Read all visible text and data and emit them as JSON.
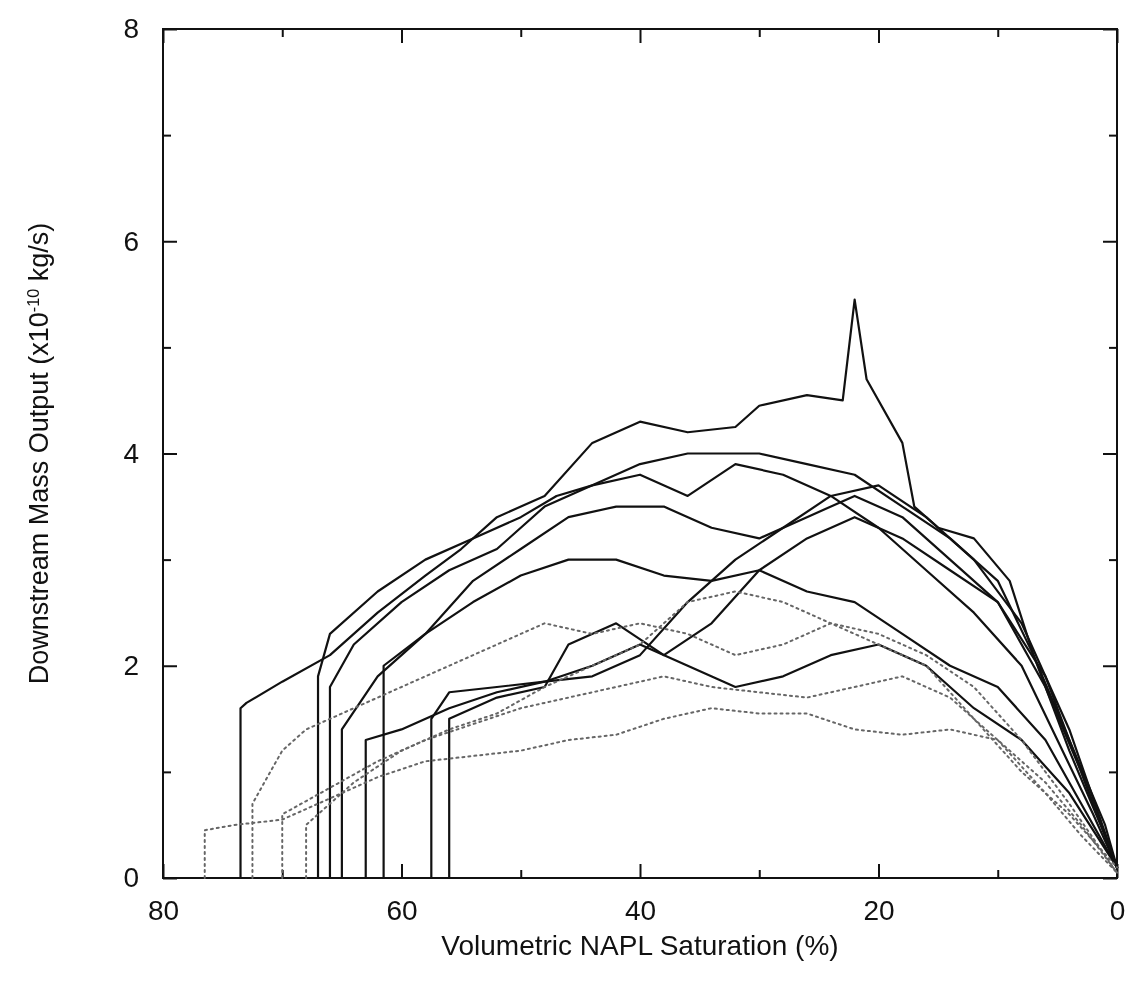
{
  "chart_data": {
    "type": "line",
    "xlabel": "Volumetric NAPL Saturation (%)",
    "ylabel": "Downstream Mass Output (x10$^{-10}$ kg/s)",
    "xlim": [
      80,
      0
    ],
    "ylim": [
      0,
      8
    ],
    "xticks": [
      80,
      {
        "value": 70,
        "label": null
      },
      60,
      {
        "value": 50,
        "label": null
      },
      40,
      {
        "value": 30,
        "label": null
      },
      20,
      {
        "value": 10,
        "label": null
      },
      0
    ],
    "yticks": [
      0,
      {
        "value": 1,
        "label": null
      },
      2,
      {
        "value": 3,
        "label": null
      },
      4,
      {
        "value": 5,
        "label": null
      },
      6,
      {
        "value": 7,
        "label": null
      },
      8
    ],
    "grid": false,
    "series": [
      {
        "color": "#111111",
        "line_style": "solid",
        "x": [
          73.5,
          73.5,
          73,
          70,
          66,
          62,
          58,
          55,
          52,
          48,
          44,
          40,
          36,
          32,
          30,
          26,
          23,
          22,
          21,
          18,
          17,
          15,
          12,
          9,
          7,
          4,
          1,
          0
        ],
        "values": [
          0,
          1.6,
          1.65,
          1.85,
          2.1,
          2.5,
          2.85,
          3.1,
          3.4,
          3.6,
          4.1,
          4.3,
          4.2,
          4.25,
          4.45,
          4.55,
          4.5,
          5.45,
          4.7,
          4.1,
          3.5,
          3.3,
          3.2,
          2.8,
          2.1,
          1.3,
          0.5,
          0.1
        ]
      },
      {
        "color": "#111111",
        "line_style": "solid",
        "x": [
          67,
          67,
          66,
          62,
          58,
          54,
          50,
          47,
          44,
          40,
          36,
          30,
          26,
          22,
          18,
          14,
          10,
          7,
          4,
          1,
          0
        ],
        "values": [
          0,
          1.9,
          2.3,
          2.7,
          3.0,
          3.2,
          3.4,
          3.6,
          3.7,
          3.9,
          4.0,
          4.0,
          3.9,
          3.8,
          3.5,
          3.2,
          2.8,
          2.1,
          1.2,
          0.4,
          0.1
        ]
      },
      {
        "color": "#111111",
        "line_style": "solid",
        "x": [
          66,
          66,
          64,
          60,
          56,
          52,
          48,
          44,
          40,
          36,
          32,
          28,
          24,
          20,
          16,
          12,
          8,
          5,
          2,
          0
        ],
        "values": [
          0,
          1.8,
          2.2,
          2.6,
          2.9,
          3.1,
          3.5,
          3.7,
          3.8,
          3.6,
          3.9,
          3.8,
          3.6,
          3.3,
          2.9,
          2.5,
          2.0,
          1.3,
          0.6,
          0.1
        ]
      },
      {
        "color": "#111111",
        "line_style": "solid",
        "x": [
          65,
          65,
          62,
          58,
          54,
          50,
          46,
          42,
          38,
          34,
          30,
          26,
          22,
          18,
          14,
          10,
          6,
          3,
          0
        ],
        "values": [
          0,
          1.4,
          1.9,
          2.3,
          2.8,
          3.1,
          3.4,
          3.5,
          3.5,
          3.3,
          3.2,
          3.4,
          3.6,
          3.4,
          3.0,
          2.6,
          1.8,
          1.0,
          0.1
        ]
      },
      {
        "color": "#111111",
        "line_style": "solid",
        "x": [
          61.5,
          61.5,
          58,
          54,
          50,
          46,
          42,
          38,
          34,
          30,
          26,
          22,
          18,
          14,
          10,
          6,
          3,
          0
        ],
        "values": [
          0,
          2.0,
          2.3,
          2.6,
          2.85,
          3.0,
          3.0,
          2.85,
          2.8,
          2.9,
          2.7,
          2.6,
          2.3,
          2.0,
          1.8,
          1.3,
          0.7,
          0.1
        ]
      },
      {
        "color": "#111111",
        "line_style": "solid",
        "x": [
          57.5,
          57.5,
          56,
          52,
          48,
          44,
          40,
          36,
          32,
          28,
          24,
          20,
          16,
          12,
          8,
          4,
          0
        ],
        "values": [
          0,
          1.5,
          1.75,
          1.8,
          1.85,
          1.9,
          2.1,
          2.6,
          3.0,
          3.3,
          3.6,
          3.7,
          3.4,
          3.0,
          2.4,
          1.4,
          0.1
        ]
      },
      {
        "color": "#111111",
        "line_style": "solid",
        "x": [
          56,
          56,
          52,
          48,
          46,
          42,
          38,
          34,
          30,
          26,
          22,
          18,
          14,
          10,
          6,
          3,
          0
        ],
        "values": [
          0,
          1.5,
          1.7,
          1.8,
          2.2,
          2.4,
          2.1,
          2.4,
          2.9,
          3.2,
          3.4,
          3.2,
          2.9,
          2.6,
          1.9,
          1.0,
          0.1
        ]
      },
      {
        "color": "#111111",
        "line_style": "solid",
        "x": [
          63,
          63,
          60,
          56,
          52,
          48,
          44,
          40,
          36,
          32,
          28,
          24,
          20,
          16,
          12,
          8,
          4,
          0
        ],
        "values": [
          0,
          1.3,
          1.4,
          1.6,
          1.75,
          1.85,
          2.0,
          2.2,
          2.0,
          1.8,
          1.9,
          2.1,
          2.2,
          2.0,
          1.6,
          1.3,
          0.8,
          0.1
        ]
      },
      {
        "color": "#666666",
        "line_style": "dotted",
        "x": [
          72.5,
          72.5,
          70,
          68,
          64,
          60,
          56,
          52,
          48,
          44,
          40,
          36,
          32,
          28,
          24,
          20,
          16,
          12,
          8,
          4,
          0
        ],
        "values": [
          0,
          0.7,
          1.2,
          1.4,
          1.6,
          1.8,
          2.0,
          2.2,
          2.4,
          2.3,
          2.4,
          2.3,
          2.1,
          2.2,
          2.4,
          2.2,
          2.0,
          1.5,
          1.0,
          0.6,
          0.1
        ]
      },
      {
        "color": "#666666",
        "line_style": "dotted",
        "x": [
          76.5,
          76.5,
          74,
          70,
          66,
          62,
          58,
          54,
          50,
          46,
          42,
          38,
          34,
          30,
          26,
          22,
          18,
          14,
          10,
          6,
          3,
          0
        ],
        "values": [
          0,
          0.45,
          0.5,
          0.55,
          0.75,
          0.95,
          1.1,
          1.15,
          1.2,
          1.3,
          1.35,
          1.5,
          1.6,
          1.55,
          1.55,
          1.4,
          1.35,
          1.4,
          1.3,
          0.8,
          0.4,
          0.05
        ]
      },
      {
        "color": "#666666",
        "line_style": "dotted",
        "x": [
          70,
          70,
          66,
          62,
          58,
          54,
          50,
          46,
          42,
          38,
          34,
          30,
          26,
          22,
          18,
          14,
          10,
          6,
          3,
          0
        ],
        "values": [
          0,
          0.6,
          0.85,
          1.1,
          1.3,
          1.45,
          1.6,
          1.7,
          1.8,
          1.9,
          1.8,
          1.75,
          1.7,
          1.8,
          1.9,
          1.7,
          1.3,
          0.9,
          0.5,
          0.05
        ]
      },
      {
        "color": "#666666",
        "line_style": "dotted",
        "x": [
          68,
          68,
          64,
          60,
          56,
          52,
          48,
          44,
          40,
          36,
          32,
          28,
          24,
          20,
          16,
          12,
          8,
          4,
          0
        ],
        "values": [
          0,
          0.5,
          0.9,
          1.2,
          1.4,
          1.55,
          1.8,
          2.0,
          2.2,
          2.6,
          2.7,
          2.6,
          2.4,
          2.3,
          2.1,
          1.8,
          1.3,
          0.7,
          0.05
        ]
      }
    ]
  }
}
